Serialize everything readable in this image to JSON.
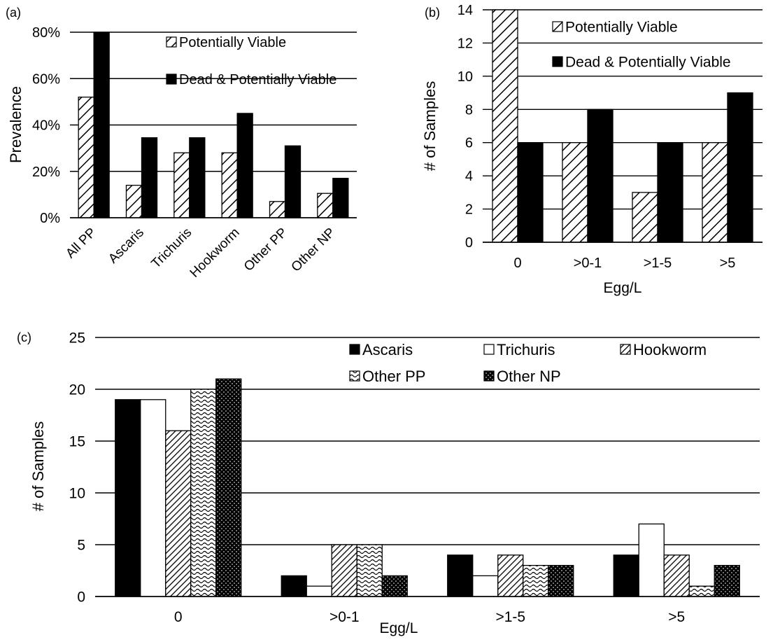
{
  "chart_data": [
    {
      "panel_label": "(a)",
      "type": "bar",
      "categories": [
        "All PP",
        "Ascaris",
        "Trichuris",
        "Hookworm",
        "Other PP",
        "Other NP"
      ],
      "series": [
        {
          "name": "Potentially Viable",
          "values": [
            52,
            14,
            28,
            28,
            7,
            10.5
          ],
          "pattern": "diag-hatch"
        },
        {
          "name": "Dead & Potentially Viable",
          "values": [
            80,
            34.5,
            34.5,
            45,
            31,
            17
          ],
          "pattern": "solid-black"
        }
      ],
      "ylabel": "Prevalence",
      "xlabel": "",
      "ylim": [
        0,
        80
      ],
      "yticks": [
        "0%",
        "20%",
        "40%",
        "60%",
        "80%"
      ],
      "grid": true,
      "legend_position": "top-right",
      "x_tick_rotation": "rotated"
    },
    {
      "panel_label": "(b)",
      "type": "bar",
      "categories": [
        "0",
        ">0-1",
        ">1-5",
        ">5"
      ],
      "series": [
        {
          "name": "Potentially Viable",
          "values": [
            14,
            6,
            3,
            6
          ],
          "pattern": "diag-hatch"
        },
        {
          "name": "Dead & Potentially Viable",
          "values": [
            6,
            8,
            6,
            9
          ],
          "pattern": "solid-black"
        }
      ],
      "ylabel": "# of Samples",
      "xlabel": "Egg/L",
      "ylim": [
        0,
        14
      ],
      "yticks": [
        "0",
        "2",
        "4",
        "6",
        "8",
        "10",
        "12",
        "14"
      ],
      "grid": true,
      "legend_position": "top-right"
    },
    {
      "panel_label": "(c)",
      "type": "bar",
      "categories": [
        "0",
        ">0-1",
        ">1-5",
        ">5"
      ],
      "series": [
        {
          "name": "Ascaris",
          "values": [
            19,
            2,
            4,
            4
          ],
          "pattern": "solid-black"
        },
        {
          "name": "Trichuris",
          "values": [
            19,
            1,
            2,
            7
          ],
          "pattern": "white"
        },
        {
          "name": "Hookworm",
          "values": [
            16,
            5,
            4,
            4
          ],
          "pattern": "dense-diag"
        },
        {
          "name": "Other PP",
          "values": [
            20,
            5,
            3,
            1
          ],
          "pattern": "wave"
        },
        {
          "name": "Other NP",
          "values": [
            21,
            2,
            3,
            3
          ],
          "pattern": "black-dots"
        }
      ],
      "ylabel": "# of Samples",
      "xlabel": "Egg/L",
      "ylim": [
        0,
        25
      ],
      "yticks": [
        "0",
        "5",
        "10",
        "15",
        "20",
        "25"
      ],
      "grid": true,
      "legend_position": "top-right"
    }
  ]
}
